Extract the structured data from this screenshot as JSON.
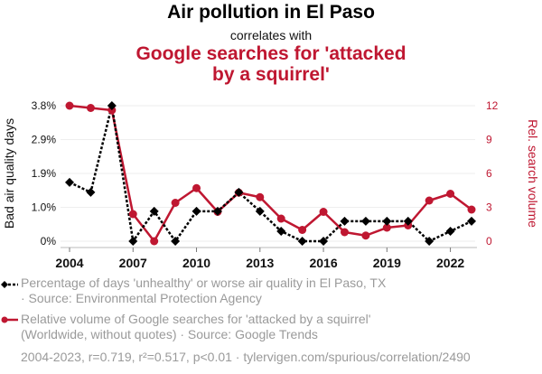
{
  "header": {
    "title": "Air pollution in El Paso",
    "subtitle": "correlates with",
    "title2_line1": "Google searches for 'attacked",
    "title2_line2": "by a squirrel'"
  },
  "legend": {
    "series1_line1": "Percentage of days 'unhealthy' or worse air quality in El Paso, TX",
    "series1_line2": "· Source: Environmental Protection Agency",
    "series2_line1": "Relative volume of Google searches for 'attacked by a squirrel'",
    "series2_line2": "(Worldwide, without quotes) · Source: Google Trends"
  },
  "footer": "2004-2023, r=0.719, r²=0.517, p<0.01 · tylervigen.com/spurious/correlation/2490",
  "colors": {
    "series1": "#000000",
    "series2": "#bf1731",
    "grid": "#eeeeee",
    "axis_left_text": "#111111",
    "axis_right_text": "#bf1731"
  },
  "chart_data": {
    "type": "line",
    "title": "Air pollution in El Paso correlates with Google searches for 'attacked by a squirrel'",
    "x": [
      2004,
      2005,
      2006,
      2007,
      2008,
      2009,
      2010,
      2011,
      2012,
      2013,
      2014,
      2015,
      2016,
      2017,
      2018,
      2019,
      2020,
      2021,
      2022,
      2023
    ],
    "xticks": [
      "2004",
      "2007",
      "2010",
      "2013",
      "2016",
      "2019",
      "2022"
    ],
    "xtick_values": [
      2004,
      2007,
      2010,
      2013,
      2016,
      2019,
      2022
    ],
    "xlim": [
      2004,
      2023
    ],
    "ylabel_left": "Bad air quality days",
    "ylabel_right": "Rel. search volume",
    "yticks_left": [
      "0%",
      "1.0%",
      "1.9%",
      "2.9%",
      "3.8%"
    ],
    "ytick_values_left": [
      0,
      0.95,
      1.9,
      2.85,
      3.8
    ],
    "ylim_left": [
      0,
      3.8
    ],
    "yticks_right": [
      "0",
      "3",
      "6",
      "9",
      "12"
    ],
    "ytick_values_right": [
      0,
      3,
      6,
      9,
      12
    ],
    "ylim_right": [
      0,
      12
    ],
    "grid": true,
    "legend_position": "bottom",
    "series": [
      {
        "name": "Percentage of days 'unhealthy' or worse air quality in El Paso, TX",
        "axis": "left",
        "style": "dotted",
        "marker": "diamond",
        "values": [
          1.65,
          1.37,
          3.8,
          0,
          0.84,
          0,
          0.84,
          0.84,
          1.37,
          0.84,
          0.28,
          0,
          0,
          0.56,
          0.56,
          0.56,
          0.56,
          0,
          0.28,
          0.56
        ]
      },
      {
        "name": "Relative volume of Google searches for 'attacked by a squirrel'",
        "axis": "right",
        "style": "solid",
        "marker": "circle",
        "values": [
          12,
          11.8,
          11.6,
          2.4,
          0,
          3.4,
          4.7,
          2.6,
          4.3,
          3.9,
          2.0,
          1.0,
          2.6,
          0.8,
          0.5,
          1.2,
          1.4,
          3.6,
          4.2,
          2.8
        ]
      }
    ]
  }
}
